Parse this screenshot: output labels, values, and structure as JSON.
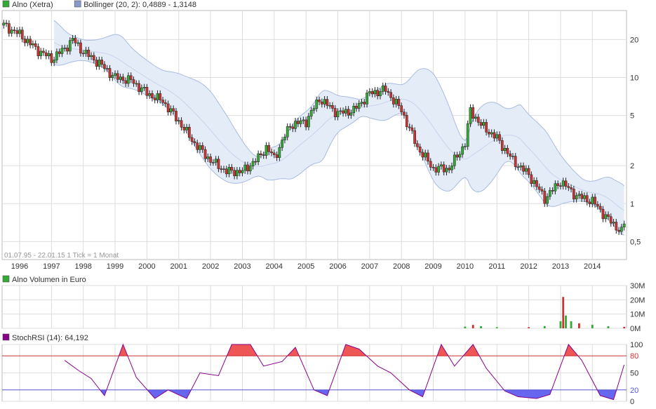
{
  "price_panel": {
    "legend": [
      {
        "label": "Alno (Xetra)",
        "swatch": "#33aa33"
      },
      {
        "label": "Bollinger (20, 2): 0,4889 - 1,3148",
        "swatch": "#8899cc"
      }
    ],
    "footnote": "01.07.95 - 22.01.15   1 Tick = 1 Monat"
  },
  "volume_panel": {
    "legend": [
      {
        "label": "Alno Volumen in Euro",
        "swatch": "#33aa33"
      }
    ]
  },
  "stoch_panel": {
    "legend": [
      {
        "label": "StochRSI (14): 64,192",
        "swatch": "#880088"
      }
    ]
  },
  "colors": {
    "up": "#33aa33",
    "down": "#cc3333",
    "band_fill": "#e4ecf8",
    "band_line": "#a8bce0",
    "stoch_line": "#880088",
    "overbought_fill": "#ee5555",
    "oversold_fill": "#6666ee",
    "grid": "#dddddd"
  },
  "chart_data": [
    {
      "type": "candlestick",
      "name": "price",
      "x_ticks": [
        "1996",
        "1997",
        "1998",
        "1999",
        "2000",
        "2001",
        "2002",
        "2003",
        "2004",
        "2005",
        "2006",
        "2007",
        "2008",
        "2009",
        "2010",
        "2011",
        "2012",
        "2013",
        "2014"
      ],
      "y_ticks": [
        "0,5",
        "1",
        "2",
        "5",
        "10",
        "20"
      ],
      "y_scale": "log",
      "ylim": [
        0.36,
        34
      ],
      "monthly_close": [
        {
          "date": "1995-07",
          "value": 26
        },
        {
          "date": "1996-01",
          "value": 22
        },
        {
          "date": "1996-07",
          "value": 17
        },
        {
          "date": "1997-01",
          "value": 14
        },
        {
          "date": "1997-06",
          "value": 17
        },
        {
          "date": "1997-09",
          "value": 20
        },
        {
          "date": "1998-01",
          "value": 16
        },
        {
          "date": "1998-07",
          "value": 13
        },
        {
          "date": "1999-01",
          "value": 10
        },
        {
          "date": "1999-07",
          "value": 9.5
        },
        {
          "date": "2000-01",
          "value": 7.5
        },
        {
          "date": "2000-07",
          "value": 6.5
        },
        {
          "date": "2001-01",
          "value": 4.5
        },
        {
          "date": "2001-07",
          "value": 3
        },
        {
          "date": "2002-01",
          "value": 2.2
        },
        {
          "date": "2002-07",
          "value": 1.8
        },
        {
          "date": "2003-01",
          "value": 1.8
        },
        {
          "date": "2003-07",
          "value": 2.3
        },
        {
          "date": "2003-10",
          "value": 2.8
        },
        {
          "date": "2004-01",
          "value": 2.3
        },
        {
          "date": "2004-07",
          "value": 4.2
        },
        {
          "date": "2005-01",
          "value": 4.5
        },
        {
          "date": "2005-06",
          "value": 6.8
        },
        {
          "date": "2006-01",
          "value": 5.2
        },
        {
          "date": "2006-07",
          "value": 5.5
        },
        {
          "date": "2007-01",
          "value": 7.5
        },
        {
          "date": "2007-07",
          "value": 8
        },
        {
          "date": "2008-01",
          "value": 5.5
        },
        {
          "date": "2008-07",
          "value": 2.8
        },
        {
          "date": "2009-01",
          "value": 1.9
        },
        {
          "date": "2009-07",
          "value": 1.9
        },
        {
          "date": "2010-01",
          "value": 3
        },
        {
          "date": "2010-03",
          "value": 5.5
        },
        {
          "date": "2010-07",
          "value": 4.2
        },
        {
          "date": "2011-01",
          "value": 3.3
        },
        {
          "date": "2011-07",
          "value": 2.2
        },
        {
          "date": "2012-01",
          "value": 1.7
        },
        {
          "date": "2012-07",
          "value": 1.1
        },
        {
          "date": "2013-01",
          "value": 1.5
        },
        {
          "date": "2013-07",
          "value": 1.15
        },
        {
          "date": "2014-01",
          "value": 1.05
        },
        {
          "date": "2014-07",
          "value": 0.75
        },
        {
          "date": "2014-12",
          "value": 0.6
        },
        {
          "date": "2015-01",
          "value": 0.7
        }
      ]
    },
    {
      "type": "bar",
      "name": "volume",
      "y_ticks": [
        "0M",
        "10M",
        "20M",
        "30M"
      ],
      "ylim": [
        0,
        30
      ],
      "unit": "M Euro",
      "monthly_volume": [
        {
          "date": "2010-01",
          "value": 1.2
        },
        {
          "date": "2010-04",
          "value": 2.4
        },
        {
          "date": "2010-07",
          "value": 1.5
        },
        {
          "date": "2011-01",
          "value": 0.8
        },
        {
          "date": "2012-01",
          "value": 0.8
        },
        {
          "date": "2012-07",
          "value": 1.6
        },
        {
          "date": "2013-01",
          "value": 5
        },
        {
          "date": "2013-02",
          "value": 22
        },
        {
          "date": "2013-03",
          "value": 9
        },
        {
          "date": "2013-05",
          "value": 5
        },
        {
          "date": "2013-08",
          "value": 3.5
        },
        {
          "date": "2014-01",
          "value": 2.5
        },
        {
          "date": "2014-07",
          "value": 1.5
        },
        {
          "date": "2015-01",
          "value": 1
        }
      ]
    },
    {
      "type": "line",
      "name": "stochrsi",
      "y_ticks": [
        "0",
        "20",
        "50",
        "80",
        "100"
      ],
      "ylim": [
        0,
        100
      ],
      "levels": [
        20,
        80
      ],
      "monthly_value": [
        {
          "date": "1997-06",
          "value": 72
        },
        {
          "date": "1997-11",
          "value": 55
        },
        {
          "date": "1998-04",
          "value": 40
        },
        {
          "date": "1998-09",
          "value": 10
        },
        {
          "date": "1999-04",
          "value": 100
        },
        {
          "date": "1999-09",
          "value": 42
        },
        {
          "date": "2000-04",
          "value": 5
        },
        {
          "date": "2000-09",
          "value": 20
        },
        {
          "date": "2001-04",
          "value": 5
        },
        {
          "date": "2001-09",
          "value": 50
        },
        {
          "date": "2002-04",
          "value": 45
        },
        {
          "date": "2002-09",
          "value": 100
        },
        {
          "date": "2003-04",
          "value": 100
        },
        {
          "date": "2003-09",
          "value": 62
        },
        {
          "date": "2004-04",
          "value": 70
        },
        {
          "date": "2004-09",
          "value": 95
        },
        {
          "date": "2005-04",
          "value": 20
        },
        {
          "date": "2005-09",
          "value": 10
        },
        {
          "date": "2006-04",
          "value": 100
        },
        {
          "date": "2006-09",
          "value": 92
        },
        {
          "date": "2007-04",
          "value": 62
        },
        {
          "date": "2007-09",
          "value": 50
        },
        {
          "date": "2008-04",
          "value": 20
        },
        {
          "date": "2008-09",
          "value": 8
        },
        {
          "date": "2009-04",
          "value": 100
        },
        {
          "date": "2009-09",
          "value": 62
        },
        {
          "date": "2010-04",
          "value": 100
        },
        {
          "date": "2010-09",
          "value": 58
        },
        {
          "date": "2011-04",
          "value": 18
        },
        {
          "date": "2011-09",
          "value": 8
        },
        {
          "date": "2012-04",
          "value": 5
        },
        {
          "date": "2012-09",
          "value": 12
        },
        {
          "date": "2013-04",
          "value": 100
        },
        {
          "date": "2013-09",
          "value": 72
        },
        {
          "date": "2014-04",
          "value": 10
        },
        {
          "date": "2014-09",
          "value": 3
        },
        {
          "date": "2015-01",
          "value": 64.192
        }
      ]
    }
  ]
}
